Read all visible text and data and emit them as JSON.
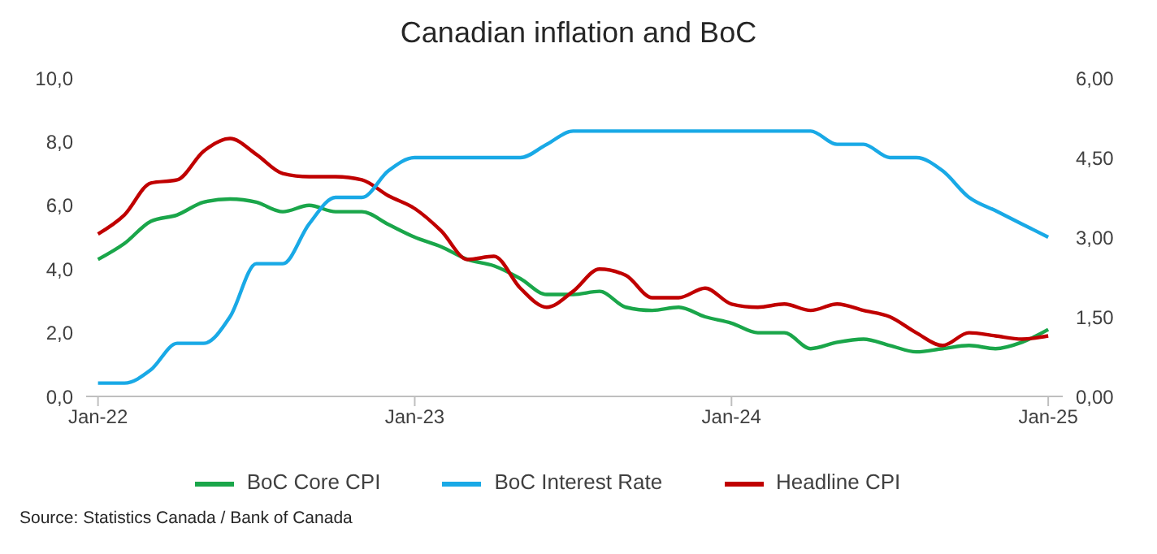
{
  "chart_data": {
    "type": "line",
    "title": "Canadian inflation and BoC",
    "categories": [
      "Jan-22",
      null,
      null,
      null,
      null,
      null,
      null,
      null,
      null,
      null,
      null,
      null,
      "Jan-23",
      null,
      null,
      null,
      null,
      null,
      null,
      null,
      null,
      null,
      null,
      null,
      "Jan-24",
      null,
      null,
      null,
      null,
      null,
      null,
      null,
      null,
      null,
      null,
      null,
      "Jan-25"
    ],
    "series": [
      {
        "name": "BoC Core CPI",
        "color": "#1aa64a",
        "values": [
          4.3,
          4.8,
          5.5,
          5.7,
          6.1,
          6.2,
          6.1,
          5.8,
          6.0,
          5.8,
          5.8,
          5.4,
          5.0,
          4.7,
          4.3,
          4.1,
          3.7,
          3.2,
          3.2,
          3.3,
          2.8,
          2.7,
          2.8,
          2.5,
          2.3,
          2.0,
          2.0,
          1.5,
          1.7,
          1.8,
          1.6,
          1.4,
          1.5,
          1.6,
          1.5,
          1.7,
          2.1
        ]
      },
      {
        "name": "Headline CPI",
        "color": "#c00000",
        "values": [
          5.1,
          5.7,
          6.7,
          6.8,
          7.7,
          8.1,
          7.6,
          7.0,
          6.9,
          6.9,
          6.8,
          6.3,
          5.9,
          5.2,
          4.3,
          4.4,
          3.4,
          2.8,
          3.3,
          4.0,
          3.8,
          3.1,
          3.1,
          3.4,
          2.9,
          2.8,
          2.9,
          2.7,
          2.9,
          2.7,
          2.5,
          2.0,
          1.6,
          2.0,
          1.9,
          1.8,
          1.9
        ]
      },
      {
        "name": "BoC Interest Rate",
        "color": "#19a9e6",
        "axis": "y2",
        "values": [
          0.25,
          0.25,
          0.5,
          1.0,
          1.0,
          1.5,
          2.5,
          2.5,
          3.25,
          3.75,
          3.75,
          4.25,
          4.5,
          4.5,
          4.5,
          4.5,
          4.5,
          4.75,
          5.0,
          5.0,
          5.0,
          5.0,
          5.0,
          5.0,
          5.0,
          5.0,
          5.0,
          5.0,
          4.75,
          4.75,
          4.5,
          4.5,
          4.25,
          3.75,
          3.5,
          3.25,
          3.0
        ]
      }
    ],
    "ylim": [
      0,
      10
    ],
    "yticks": [
      {
        "value": 0,
        "label": "0,0"
      },
      {
        "value": 2,
        "label": "2,0"
      },
      {
        "value": 4,
        "label": "4,0"
      },
      {
        "value": 6,
        "label": "6,0"
      },
      {
        "value": 8,
        "label": "8,0"
      },
      {
        "value": 10,
        "label": "10,0"
      }
    ],
    "y2lim": [
      0,
      6
    ],
    "y2ticks": [
      {
        "value": 0,
        "label": "0,00"
      },
      {
        "value": 1.5,
        "label": "1,50"
      },
      {
        "value": 3,
        "label": "3,00"
      },
      {
        "value": 4.5,
        "label": "4,50"
      },
      {
        "value": 6,
        "label": "6,00"
      }
    ],
    "legend": "bottom",
    "grid": false,
    "marker": "none",
    "line_style": "solid",
    "annotations": [
      "Source: Statistics Canada / Bank of Canada"
    ]
  }
}
